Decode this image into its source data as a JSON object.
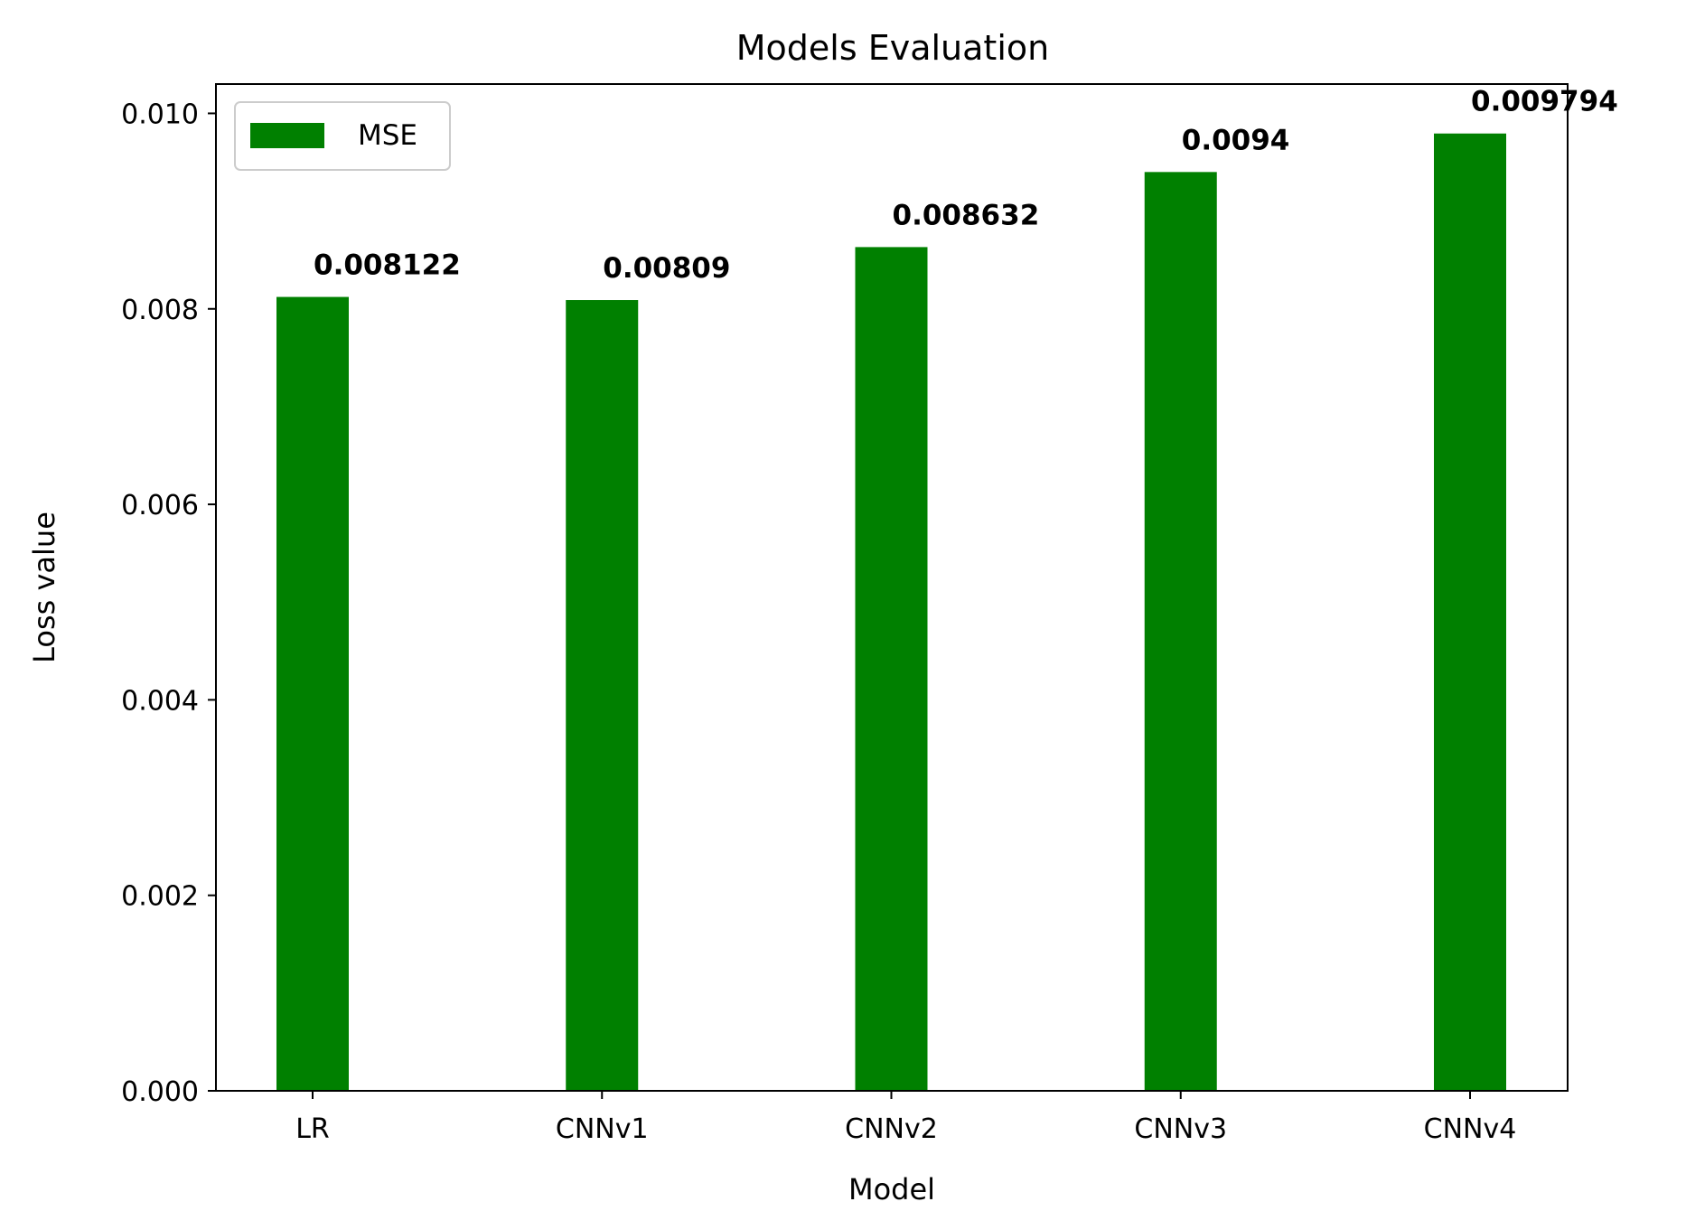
{
  "chart_data": {
    "type": "bar",
    "title": "Models Evaluation",
    "xlabel": "Model",
    "ylabel": "Loss value",
    "categories": [
      "LR",
      "CNNv1",
      "CNNv2",
      "CNNv3",
      "CNNv4"
    ],
    "series": [
      {
        "name": "MSE",
        "color": "#008000",
        "values": [
          0.008122,
          0.00809,
          0.008632,
          0.0094,
          0.009794
        ],
        "value_labels": [
          "0.008122",
          "0.00809",
          "0.008632",
          "0.0094",
          "0.009794"
        ]
      }
    ],
    "ylim": [
      0,
      0.0103
    ],
    "yticks": [
      0,
      0.002,
      0.004,
      0.006,
      0.008,
      0.01
    ],
    "ytick_labels": [
      "0.000",
      "0.002",
      "0.004",
      "0.006",
      "0.008",
      "0.010"
    ],
    "grid": false,
    "legend_position": "top-left"
  }
}
